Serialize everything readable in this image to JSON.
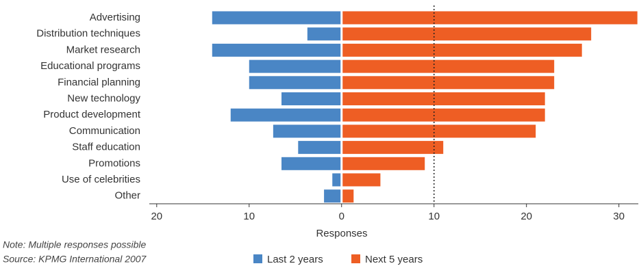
{
  "chart_data": {
    "type": "diverging-bar",
    "categories": [
      "Advertising",
      "Distribution techniques",
      "Market research",
      "Educational programs",
      "Financial planning",
      "New technology",
      "Product development",
      "Communication",
      "Staff education",
      "Promotions",
      "Use of celebrities",
      "Other"
    ],
    "series": [
      {
        "name": "Last 2 years",
        "color": "#4a86c5",
        "values": [
          -14,
          -3.7,
          -14,
          -10,
          -10,
          -6.5,
          -12,
          -7.4,
          -4.7,
          -6.5,
          -1,
          -1.9
        ]
      },
      {
        "name": "Next 5 years",
        "color": "#ee5e24",
        "values": [
          32,
          27,
          26,
          23,
          23,
          22,
          22,
          21,
          11,
          9,
          4.2,
          1.3
        ]
      }
    ],
    "xlim": [
      -20.8,
      32.1
    ],
    "xticks": [
      {
        "value": -20,
        "label": "20"
      },
      {
        "value": -10,
        "label": "10"
      },
      0,
      10,
      20,
      30
    ],
    "xlabel": "Responses",
    "reference_line": 10,
    "notes": [
      "Note: Multiple responses possible",
      "Source: KPMG International 2007"
    ]
  }
}
